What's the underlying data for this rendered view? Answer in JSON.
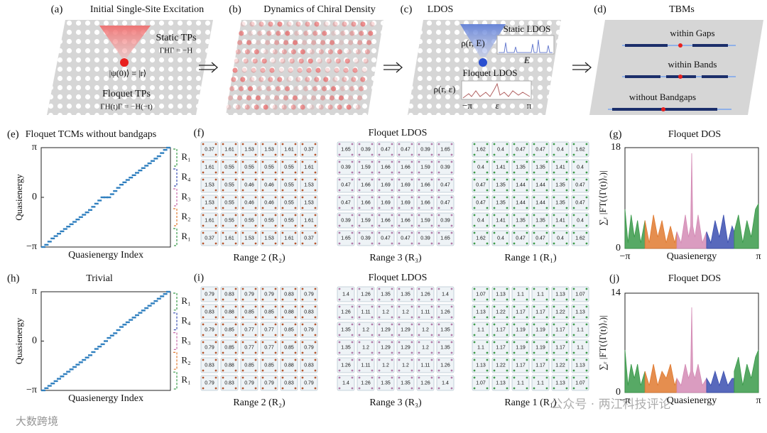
{
  "panels": {
    "a": {
      "label": "(a)",
      "title": "Initial Single-Site Excitation",
      "static": "Static TPs",
      "static_eq": "ΓHΓ = −H",
      "state": "|ψ(0)⟩ = |r⟩",
      "floquet": "Floquet TPs",
      "floquet_eq": "ΓH(t)Γ = −H(−t)"
    },
    "b": {
      "label": "(b)",
      "title": "Dynamics of Chiral Density"
    },
    "c": {
      "label": "(c)",
      "title": "LDOS",
      "rho_e": "ρ(r, E)",
      "static": "Static LDOS",
      "e": "E",
      "floquet": "Floquet LDOS",
      "rho_eps": "ρ(r, ε)",
      "minus_pi": "−π",
      "eps": "ε",
      "pi": "π"
    },
    "d": {
      "label": "(d)",
      "title": "TBMs",
      "gaps": "within Gaps",
      "bands": "within Bands",
      "none": "without Bandgaps"
    }
  },
  "chart_data": [
    {
      "type": "line",
      "label": "(e)",
      "title": "Floquet TCMs without bandgaps",
      "ylabel": "Quasienergy",
      "xlabel": "Quasienergy Index",
      "color": "#2f7fbf",
      "ylim": [
        -3.1416,
        3.1416
      ],
      "yticks": [
        {
          "value": -3.1416,
          "label": "−π"
        },
        0,
        {
          "value": 3.1416,
          "label": "π"
        }
      ],
      "values": [
        -3.14,
        -3.0,
        -2.8,
        -2.6,
        -2.45,
        -2.3,
        -2.15,
        -2.0,
        -1.85,
        -1.7,
        -1.55,
        -1.4,
        -1.25,
        -1.1,
        -0.95,
        -0.8,
        -0.6,
        -0.4,
        -0.2,
        0,
        0,
        0,
        0.2,
        0.4,
        0.6,
        0.8,
        0.95,
        1.1,
        1.25,
        1.4,
        1.55,
        1.7,
        1.85,
        2.0,
        2.15,
        2.3,
        2.45,
        2.6,
        2.8,
        3.0,
        3.14
      ],
      "ranges": [
        {
          "label": "R₁",
          "color": "#3a9a4a"
        },
        {
          "label": "R₄",
          "color": "#3b4fb0"
        },
        {
          "label": "R₃",
          "color": "#c66aa8"
        },
        {
          "label": "R₂",
          "color": "#e07a30"
        },
        {
          "label": "R₁",
          "color": "#3a9a4a"
        }
      ]
    },
    {
      "type": "area",
      "label": "(g)",
      "title": "Floquet DOS",
      "xlabel": "Quasienergy",
      "ylabel": "∑ᵣ |FT(⟨Γ(t)⟩ᵣ)|",
      "xlim": [
        -3.1416,
        3.1416
      ],
      "xticks": [
        {
          "value": -3.1416,
          "label": "−π"
        },
        {
          "value": 3.1416,
          "label": "π"
        }
      ],
      "ylim": [
        0,
        18
      ],
      "yticks": [
        0,
        18
      ],
      "series": [
        {
          "color": "#3a9a4a",
          "x": [
            -3.14,
            -3.0,
            -2.85,
            -2.7,
            -2.55,
            -2.4,
            -2.2
          ],
          "values": [
            7,
            1,
            6,
            2,
            5,
            1,
            5
          ]
        },
        {
          "color": "#e07a30",
          "x": [
            -2.2,
            -2.0,
            -1.8,
            -1.6,
            -1.4,
            -1.2,
            -1.0,
            -0.8,
            -0.7
          ],
          "values": [
            5,
            1,
            6,
            2,
            5,
            1,
            4,
            1,
            3
          ]
        },
        {
          "color": "#d48bb5",
          "x": [
            -0.7,
            -0.5,
            -0.3,
            -0.15,
            -0.05,
            0,
            0.05,
            0.15,
            0.3,
            0.5,
            0.7
          ],
          "values": [
            3,
            1,
            6,
            2,
            4,
            17,
            4,
            2,
            6,
            1,
            3
          ]
        },
        {
          "color": "#3b4fb0",
          "x": [
            0.7,
            0.9,
            1.1,
            1.3,
            1.5,
            1.7,
            1.9,
            2.0
          ],
          "values": [
            3,
            1,
            5,
            2,
            6,
            1,
            4,
            3
          ]
        },
        {
          "color": "#3a9a4a",
          "x": [
            2.0,
            2.2,
            2.4,
            2.6,
            2.8,
            3.0,
            3.14
          ],
          "values": [
            3,
            6,
            1,
            5,
            2,
            7,
            8
          ]
        }
      ]
    },
    {
      "type": "line",
      "label": "(h)",
      "title": "Trivial",
      "ylabel": "Quasienergy",
      "xlabel": "Quasienergy Index",
      "color": "#2f7fbf",
      "ylim": [
        -3.1416,
        3.1416
      ],
      "yticks": [
        {
          "value": -3.1416,
          "label": "−π"
        },
        0,
        {
          "value": 3.1416,
          "label": "π"
        }
      ],
      "values": [
        -3.14,
        -3.0,
        -2.85,
        -2.7,
        -2.55,
        -2.4,
        -2.25,
        -2.1,
        -1.95,
        -1.8,
        -1.65,
        -1.5,
        -1.35,
        -1.2,
        -1.05,
        -0.9,
        -0.7,
        -0.5,
        -0.35,
        -0.2,
        0,
        0.2,
        0.35,
        0.5,
        0.7,
        0.9,
        1.05,
        1.2,
        1.35,
        1.5,
        1.65,
        1.8,
        1.95,
        2.1,
        2.25,
        2.4,
        2.55,
        2.7,
        2.85,
        3.0,
        3.14
      ],
      "ranges": [
        {
          "label": "R₁",
          "color": "#3a9a4a"
        },
        {
          "label": "R₄",
          "color": "#3b4fb0"
        },
        {
          "label": "R₃",
          "color": "#c66aa8"
        },
        {
          "label": "R₂",
          "color": "#e07a30"
        },
        {
          "label": "R₁",
          "color": "#3a9a4a"
        }
      ]
    },
    {
      "type": "area",
      "label": "(j)",
      "title": "Floquet DOS",
      "xlabel": "Quasienergy",
      "ylabel": "∑ᵣ |FT(⟨Γ(t)⟩ᵣ)|",
      "xlim": [
        -3.1416,
        3.1416
      ],
      "xticks": [
        {
          "value": -3.1416,
          "label": "−π"
        },
        {
          "value": 3.1416,
          "label": "π"
        }
      ],
      "ylim": [
        0,
        14
      ],
      "yticks": [
        0,
        14
      ],
      "series": [
        {
          "color": "#3a9a4a",
          "x": [
            -3.14,
            -3.0,
            -2.85,
            -2.7,
            -2.55,
            -2.4,
            -2.2
          ],
          "values": [
            6,
            1,
            4,
            2,
            4,
            1,
            3
          ]
        },
        {
          "color": "#e07a30",
          "x": [
            -2.2,
            -2.0,
            -1.8,
            -1.6,
            -1.4,
            -1.2,
            -1.0,
            -0.8,
            -0.7
          ],
          "values": [
            3,
            1,
            4,
            1,
            3,
            2,
            4,
            1,
            2
          ]
        },
        {
          "color": "#d48bb5",
          "x": [
            -0.7,
            -0.5,
            -0.3,
            -0.15,
            -0.05,
            0,
            0.05,
            0.15,
            0.3,
            0.5,
            0.7
          ],
          "values": [
            2,
            1,
            4,
            2,
            3,
            12,
            3,
            2,
            4,
            1,
            2
          ]
        },
        {
          "color": "#3b4fb0",
          "x": [
            0.7,
            0.9,
            1.1,
            1.3,
            1.5,
            1.7,
            1.9,
            2.0
          ],
          "values": [
            2,
            1,
            3,
            1,
            3,
            1,
            2,
            2
          ]
        },
        {
          "color": "#3a9a4a",
          "x": [
            2.0,
            2.2,
            2.4,
            2.6,
            2.8,
            3.0,
            3.14
          ],
          "values": [
            3,
            5,
            1,
            4,
            2,
            5,
            6
          ]
        }
      ]
    }
  ],
  "ldos": [
    {
      "label": "(f)",
      "title": "Floquet LDOS",
      "grids": [
        {
          "caption": "Range 2 (R₂)",
          "color": "#b5552c",
          "rows": [
            [
              0.37,
              1.61,
              1.53,
              1.53,
              1.61,
              0.37
            ],
            [
              1.61,
              0.55,
              0.55,
              0.55,
              0.55,
              1.61
            ],
            [
              1.53,
              0.55,
              0.46,
              0.46,
              0.55,
              1.53
            ],
            [
              1.53,
              0.55,
              0.46,
              0.46,
              0.55,
              1.53
            ],
            [
              1.61,
              0.55,
              0.55,
              0.55,
              0.55,
              1.61
            ],
            [
              0.37,
              1.61,
              1.53,
              1.53,
              1.61,
              0.37
            ]
          ]
        },
        {
          "caption": "Range 3 (R₃)",
          "color": "#b07aa8",
          "rows": [
            [
              1.65,
              0.39,
              0.47,
              0.47,
              0.39,
              1.65
            ],
            [
              0.39,
              1.59,
              1.66,
              1.66,
              1.59,
              0.39
            ],
            [
              0.47,
              1.66,
              1.69,
              1.69,
              1.66,
              0.47
            ],
            [
              0.47,
              1.66,
              1.69,
              1.69,
              1.66,
              0.47
            ],
            [
              0.39,
              1.59,
              1.66,
              1.66,
              1.59,
              0.39
            ],
            [
              1.65,
              0.39,
              0.47,
              0.47,
              0.39,
              1.65
            ]
          ]
        },
        {
          "caption": "Range 1 (R₁)",
          "color": "#3d9a4a",
          "rows": [
            [
              1.62,
              0.4,
              0.47,
              0.47,
              0.4,
              1.62
            ],
            [
              0.4,
              1.41,
              1.35,
              1.35,
              1.41,
              0.4
            ],
            [
              0.47,
              1.35,
              1.44,
              1.44,
              1.35,
              0.47
            ],
            [
              0.47,
              1.35,
              1.44,
              1.44,
              1.35,
              0.47
            ],
            [
              0.4,
              1.41,
              1.35,
              1.35,
              1.41,
              0.4
            ],
            [
              1.62,
              0.4,
              0.47,
              0.47,
              0.4,
              1.62
            ]
          ]
        }
      ]
    },
    {
      "label": "(i)",
      "title": "Floquet LDOS",
      "grids": [
        {
          "caption": "Range 2 (R₂)",
          "color": "#b5552c",
          "rows": [
            [
              0.79,
              0.83,
              0.79,
              0.79,
              0.83,
              0.79
            ],
            [
              0.83,
              0.88,
              0.85,
              0.85,
              0.88,
              0.83
            ],
            [
              0.79,
              0.85,
              0.77,
              0.77,
              0.85,
              0.79
            ],
            [
              0.79,
              0.85,
              0.77,
              0.77,
              0.85,
              0.79
            ],
            [
              0.83,
              0.88,
              0.85,
              0.85,
              0.88,
              0.83
            ],
            [
              0.79,
              0.83,
              0.79,
              0.79,
              0.83,
              0.79
            ]
          ]
        },
        {
          "caption": "Range 3 (R₃)",
          "color": "#b07aa8",
          "rows": [
            [
              1.4,
              1.26,
              1.35,
              1.35,
              1.26,
              1.4
            ],
            [
              1.26,
              1.11,
              1.2,
              1.2,
              1.11,
              1.26
            ],
            [
              1.35,
              1.2,
              1.29,
              1.29,
              1.2,
              1.35
            ],
            [
              1.35,
              1.2,
              1.29,
              1.29,
              1.2,
              1.35
            ],
            [
              1.26,
              1.11,
              1.2,
              1.2,
              1.11,
              1.26
            ],
            [
              1.4,
              1.26,
              1.35,
              1.35,
              1.26,
              1.4
            ]
          ]
        },
        {
          "caption": "Range 1 (R₁)",
          "color": "#3d9a4a",
          "rows": [
            [
              1.07,
              1.13,
              1.1,
              1.1,
              1.13,
              1.07
            ],
            [
              1.13,
              1.22,
              1.17,
              1.17,
              1.22,
              1.13
            ],
            [
              1.1,
              1.17,
              1.19,
              1.19,
              1.17,
              1.1
            ],
            [
              1.1,
              1.17,
              1.19,
              1.19,
              1.17,
              1.1
            ],
            [
              1.13,
              1.22,
              1.17,
              1.17,
              1.22,
              1.13
            ],
            [
              1.07,
              1.13,
              1.1,
              1.1,
              1.13,
              1.07
            ]
          ]
        }
      ]
    }
  ],
  "watermarks": [
    "大数跨境",
    "公众号 · 两江科技评论"
  ]
}
